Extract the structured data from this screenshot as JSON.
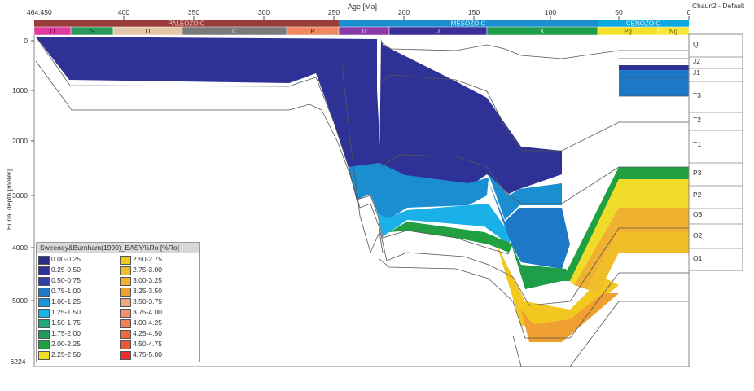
{
  "header": {
    "axis_title": "Age [Ma]",
    "start_age": "464.450",
    "age_ticks": [
      "400",
      "350",
      "300",
      "250",
      "200",
      "150",
      "100",
      "50",
      "0"
    ],
    "view_name": "Chaun2 - Default"
  },
  "eras": [
    {
      "name": "PALEOZOIC",
      "color": "#9a3c3a",
      "text_color": "#f0d0d0"
    },
    {
      "name": "MESOZOIC",
      "color": "#1a8ed0",
      "text_color": "#d8eef8"
    },
    {
      "name": "CENOZOIC",
      "color": "#0aa9e0",
      "text_color": "#d8f0f8"
    }
  ],
  "periods": [
    {
      "name": "O",
      "color": "#e03aa0",
      "text_color": "#600030"
    },
    {
      "name": "S",
      "color": "#2a9a5a",
      "text_color": "#103020"
    },
    {
      "name": "D",
      "color": "#e2c7a8",
      "text_color": "#553322"
    },
    {
      "name": "C",
      "color": "#7a7a7a",
      "text_color": "#dddddd"
    },
    {
      "name": "P",
      "color": "#f08860",
      "text_color": "#552211"
    },
    {
      "name": "Tr",
      "color": "#8a3aa8",
      "text_color": "#f0e0f8"
    },
    {
      "name": "J",
      "color": "#3a2e98",
      "text_color": "#e0e0ff"
    },
    {
      "name": "K",
      "color": "#1e9e4a",
      "text_color": "#e0ffe0"
    },
    {
      "name": "Pg",
      "color": "#f5e02a",
      "text_color": "#555500"
    },
    {
      "name": "Ng",
      "color": "#f8e63a",
      "text_color": "#555500"
    }
  ],
  "depth_axis": {
    "label": "Burial depth [meter]",
    "ticks": [
      "0",
      "1000",
      "2000",
      "3000",
      "4000",
      "5000"
    ],
    "max_label": "6224"
  },
  "layers": [
    "Q",
    "J2",
    "J1",
    "T3",
    "T2",
    "T1",
    "P3",
    "P2",
    "O3",
    "O2",
    "O1"
  ],
  "legend": {
    "title": "Sweeney&Burnham(1990)_EASY%Ro [%Ro]",
    "items": [
      {
        "label": "0.00-0.25",
        "color": "#2a2c8a"
      },
      {
        "label": "0.25-0.50",
        "color": "#2e3296"
      },
      {
        "label": "0.50-0.75",
        "color": "#3040a8"
      },
      {
        "label": "0.75-1.00",
        "color": "#1e78c8"
      },
      {
        "label": "1.00-1.25",
        "color": "#1a96dc"
      },
      {
        "label": "1.25-1.50",
        "color": "#1ab0e8"
      },
      {
        "label": "1.50-1.75",
        "color": "#20a878"
      },
      {
        "label": "1.75-2.00",
        "color": "#1e9a5a"
      },
      {
        "label": "2.00-2.25",
        "color": "#20a040"
      },
      {
        "label": "2.25-2.50",
        "color": "#f0dc28"
      },
      {
        "label": "2.50-2.75",
        "color": "#f2c820"
      },
      {
        "label": "2.75-3.00",
        "color": "#f0be28"
      },
      {
        "label": "3.00-3.25",
        "color": "#f0b030"
      },
      {
        "label": "3.25-3.50",
        "color": "#f0a030"
      },
      {
        "label": "3.50-3.75",
        "color": "#f0a884"
      },
      {
        "label": "3.75-4.00",
        "color": "#f09070"
      },
      {
        "label": "4.00-4.25",
        "color": "#f08050"
      },
      {
        "label": "4.25-4.50",
        "color": "#ec6c40"
      },
      {
        "label": "4.50-4.75",
        "color": "#ea5838"
      },
      {
        "label": "4.75-5.00",
        "color": "#e83030"
      }
    ]
  }
}
